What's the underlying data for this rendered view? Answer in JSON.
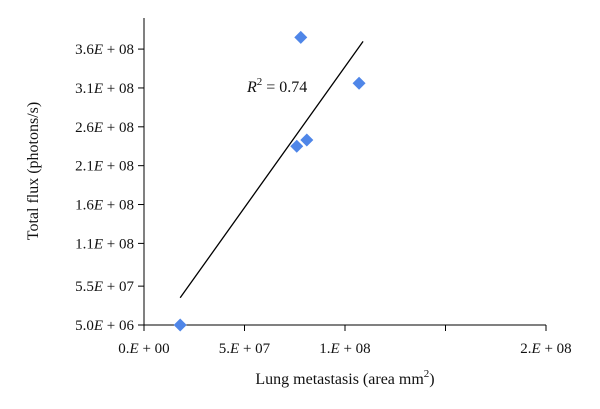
{
  "chart_data": {
    "type": "scatter",
    "xlabel": "Lung metastasis (area mm",
    "xlabel_sup": "2",
    "xlabel_close": ")",
    "ylabel": "Total flux (photons/s)",
    "xlim": [
      0,
      200000000
    ],
    "ylim": [
      5000000,
      400000000
    ],
    "x_ticks": [
      0,
      50000000,
      100000000,
      150000000,
      200000000
    ],
    "y_ticks": [
      5000000,
      55000000,
      110000000,
      160000000,
      210000000,
      260000000,
      310000000,
      360000000
    ],
    "x_tick_labels": [
      {
        "mantissa": "0.",
        "e": "E",
        "exp": " + 00"
      },
      {
        "mantissa": "5.",
        "e": "E",
        "exp": " + 07"
      },
      {
        "mantissa": "1.",
        "e": "E",
        "exp": " + 08"
      },
      {
        "mantissa": "",
        "e": "",
        "exp": ""
      },
      {
        "mantissa": "2.",
        "e": "E",
        "exp": " + 08"
      }
    ],
    "y_tick_labels": [
      {
        "mantissa": "5.0",
        "e": "E",
        "exp": " + 06"
      },
      {
        "mantissa": "5.5",
        "e": "E",
        "exp": " + 07"
      },
      {
        "mantissa": "1.1",
        "e": "E",
        "exp": " + 08"
      },
      {
        "mantissa": "1.6",
        "e": "E",
        "exp": " + 08"
      },
      {
        "mantissa": "2.1",
        "e": "E",
        "exp": " + 08"
      },
      {
        "mantissa": "2.6",
        "e": "E",
        "exp": " + 08"
      },
      {
        "mantissa": "3.1",
        "e": "E",
        "exp": " + 08"
      },
      {
        "mantissa": "3.6",
        "e": "E",
        "exp": " + 08"
      }
    ],
    "series": [
      {
        "points": [
          {
            "x": 18000000,
            "y": 5000000
          },
          {
            "x": 76000000,
            "y": 235000000
          },
          {
            "x": 81000000,
            "y": 243000000
          },
          {
            "x": 78000000,
            "y": 375000000
          },
          {
            "x": 107000000,
            "y": 316000000
          }
        ],
        "color": "#4f86e8",
        "marker": "diamond"
      }
    ],
    "trendline": {
      "x": [
        18000000,
        109000000
      ],
      "y": [
        40000000,
        370000000
      ],
      "color": "#000000"
    },
    "annotation": {
      "r": "R",
      "sup": "2",
      "rest": " = 0.74"
    },
    "grid": false
  }
}
